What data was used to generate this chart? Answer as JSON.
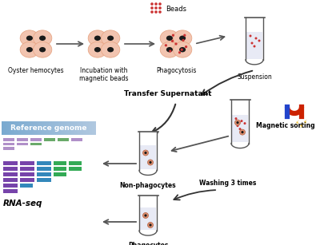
{
  "background_color": "#ffffff",
  "figsize": [
    4.0,
    3.07
  ],
  "dpi": 100,
  "top_labels": [
    "Oyster hemocytes",
    "Incubation with\nmagnetic beads",
    "Phagocytosis",
    "Suspension"
  ],
  "beads_label": "Beads",
  "transfer_label": "Transfer Supernatant",
  "magnetic_label": "Magnetic sorting",
  "non_phago_label": "Non-phagocytes",
  "washing_label": "Washing 3 times",
  "phago_label": "Phagocytes",
  "ref_genome_label": "Reference genome",
  "rna_seq_label": "RNA-seq",
  "cell_color": "#f2c4b0",
  "cell_edge": "#e8a888",
  "nucleus_color": "#1a1a1a",
  "bead_color_red": "#cc3333",
  "tube_color": "#555555",
  "ref_bar_rows": [
    [
      [
        "#c0a0cc",
        "#c0a0cc",
        "#6aaa6a",
        "#c0a0cc",
        "#6aaa6a",
        "#c0a0cc"
      ]
    ],
    [
      [
        "#c0a0cc",
        "#c0a0cc",
        "#6aaa6a"
      ]
    ],
    [
      [
        "#c0a0cc"
      ]
    ]
  ],
  "rna_bar_col1": "#7744aa",
  "rna_bar_col2": "#3388aa",
  "rna_bar_col3": "#33aa55",
  "arrow_color": "#555555",
  "ref_bg_left": "#7aaad0",
  "ref_bg_right": "#b0c8e0"
}
